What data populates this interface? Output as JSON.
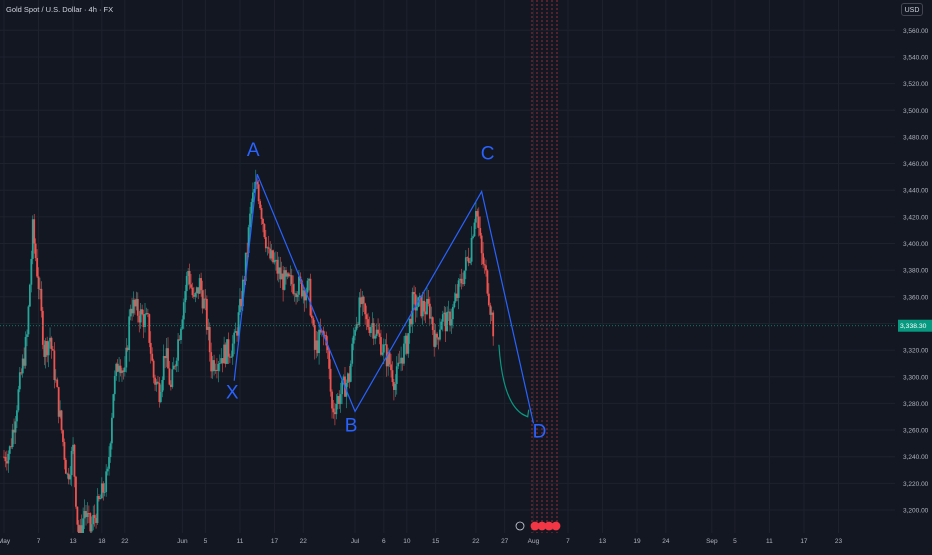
{
  "header": {
    "symbol_title": "Gold Spot / U.S. Dollar · 4h · FX",
    "currency": "USD"
  },
  "price_axis": {
    "labels": [
      "3,560.00",
      "3,540.00",
      "3,520.00",
      "3,500.00",
      "3,480.00",
      "3,460.00",
      "3,440.00",
      "3,420.00",
      "3,400.00",
      "3,380.00",
      "3,360.00",
      "3,340.00",
      "3,320.00",
      "3,300.00",
      "3,280.00",
      "3,260.00",
      "3,240.00",
      "3,220.00",
      "3,200.00"
    ],
    "current_price_label": "3,338.30"
  },
  "time_axis": {
    "labels": [
      "May",
      "7",
      "13",
      "18",
      "22",
      "Jun",
      "5",
      "11",
      "17",
      "22",
      "Jul",
      "6",
      "10",
      "15",
      "22",
      "27",
      "Aug",
      "7",
      "13",
      "19",
      "24",
      "Sep",
      "5",
      "11",
      "17",
      "23"
    ]
  },
  "pattern_labels": [
    "X",
    "A",
    "B",
    "C",
    "D"
  ],
  "colors": {
    "background": "#131722",
    "up_candle": "#26a69a",
    "down_candle": "#ef5350",
    "pattern_line": "#2962ff",
    "pattern_text": "#2962ff",
    "current_price": "#089981",
    "event_lines": "#f23645",
    "grid": "#1e222d",
    "axis_text": "#b2b5be"
  },
  "chart_data": {
    "type": "candlestick",
    "title": "Gold Spot / U.S. Dollar · 4h · FX",
    "ylim": [
      3190,
      3570
    ],
    "y_ticks": [
      3200,
      3220,
      3240,
      3260,
      3280,
      3300,
      3320,
      3340,
      3360,
      3380,
      3400,
      3420,
      3440,
      3460,
      3480,
      3500,
      3520,
      3540,
      3560
    ],
    "x_range": [
      "2025-05-01",
      "2025-09-27"
    ],
    "x_ticks": [
      "May",
      "7",
      "13",
      "18",
      "22",
      "Jun",
      "5",
      "11",
      "17",
      "22",
      "Jul",
      "6",
      "10",
      "15",
      "22",
      "27",
      "Aug",
      "7",
      "13",
      "19",
      "24",
      "Sep",
      "5",
      "11",
      "17",
      "23"
    ],
    "close_path": [
      [
        "2025-05-01",
        3240
      ],
      [
        "2025-05-02",
        3245
      ],
      [
        "2025-05-05",
        3330
      ],
      [
        "2025-05-06",
        3410
      ],
      [
        "2025-05-07",
        3370
      ],
      [
        "2025-05-08",
        3320
      ],
      [
        "2025-05-09",
        3330
      ],
      [
        "2025-05-12",
        3225
      ],
      [
        "2025-05-13",
        3245
      ],
      [
        "2025-05-14",
        3175
      ],
      [
        "2025-05-15",
        3200
      ],
      [
        "2025-05-16",
        3185
      ],
      [
        "2025-05-19",
        3225
      ],
      [
        "2025-05-20",
        3290
      ],
      [
        "2025-05-21",
        3315
      ],
      [
        "2025-05-22",
        3300
      ],
      [
        "2025-05-23",
        3355
      ],
      [
        "2025-05-26",
        3340
      ],
      [
        "2025-05-27",
        3300
      ],
      [
        "2025-05-28",
        3290
      ],
      [
        "2025-05-29",
        3320
      ],
      [
        "2025-05-30",
        3290
      ],
      [
        "2025-06-02",
        3380
      ],
      [
        "2025-06-03",
        3355
      ],
      [
        "2025-06-04",
        3370
      ],
      [
        "2025-06-05",
        3350
      ],
      [
        "2025-06-06",
        3310
      ],
      [
        "2025-06-09",
        3320
      ],
      [
        "2025-06-10",
        3325
      ],
      [
        "2025-06-11",
        3350
      ],
      [
        "2025-06-12",
        3385
      ],
      [
        "2025-06-13",
        3430
      ],
      [
        "2025-06-14",
        3445
      ],
      [
        "2025-06-16",
        3390
      ],
      [
        "2025-06-17",
        3385
      ],
      [
        "2025-06-18",
        3375
      ],
      [
        "2025-06-19",
        3370
      ],
      [
        "2025-06-20",
        3370
      ],
      [
        "2025-06-23",
        3365
      ],
      [
        "2025-06-24",
        3320
      ],
      [
        "2025-06-25",
        3330
      ],
      [
        "2025-06-26",
        3330
      ],
      [
        "2025-06-27",
        3275
      ],
      [
        "2025-06-30",
        3300
      ],
      [
        "2025-07-01",
        3340
      ],
      [
        "2025-07-02",
        3355
      ],
      [
        "2025-07-03",
        3340
      ],
      [
        "2025-07-04",
        3340
      ],
      [
        "2025-07-07",
        3310
      ],
      [
        "2025-07-08",
        3295
      ],
      [
        "2025-07-09",
        3315
      ],
      [
        "2025-07-10",
        3325
      ],
      [
        "2025-07-11",
        3355
      ],
      [
        "2025-07-14",
        3350
      ],
      [
        "2025-07-15",
        3325
      ],
      [
        "2025-07-16",
        3345
      ],
      [
        "2025-07-17",
        3340
      ],
      [
        "2025-07-18",
        3350
      ],
      [
        "2025-07-21",
        3395
      ],
      [
        "2025-07-22",
        3430
      ],
      [
        "2025-07-23",
        3390
      ],
      [
        "2025-07-24",
        3370
      ],
      [
        "2025-07-25",
        3337
      ]
    ],
    "pattern_points": {
      "X": [
        "2025-06-10",
        3297
      ],
      "A": [
        "2025-06-14",
        3452
      ],
      "B": [
        "2025-07-01",
        3274
      ],
      "C": [
        "2025-07-23",
        3439
      ],
      "D": [
        "2025-08-01",
        3265
      ]
    },
    "projection_arrow": {
      "from": [
        "2025-07-26",
        3324
      ],
      "to": [
        "2025-07-31",
        3270
      ]
    },
    "current_price": 3338.3
  }
}
